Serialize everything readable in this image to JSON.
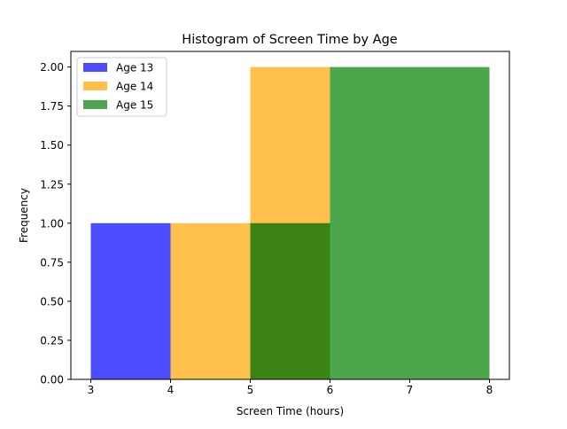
{
  "chart_data": {
    "type": "bar",
    "title": "Histogram of Screen Time by Age",
    "xlabel": "Screen Time (hours)",
    "ylabel": "Frequency",
    "xlim": [
      2.75,
      8.25
    ],
    "ylim": [
      0,
      2.1
    ],
    "xticks": [
      3,
      4,
      5,
      6,
      7,
      8
    ],
    "yticks": [
      0,
      0.25,
      0.5,
      0.75,
      1.0,
      1.25,
      1.5,
      1.75,
      2.0
    ],
    "xtick_labels": [
      "3",
      "4",
      "5",
      "6",
      "7",
      "8"
    ],
    "ytick_labels": [
      "0.00",
      "0.25",
      "0.50",
      "0.75",
      "1.00",
      "1.25",
      "1.50",
      "1.75",
      "2.00"
    ],
    "grid": false,
    "legend_position": "top-left",
    "bin_edges": [
      3,
      4,
      5,
      6,
      7,
      8
    ],
    "series": [
      {
        "name": "Age 13",
        "color": "#0000ff",
        "opacity": 0.7,
        "counts": [
          1,
          0,
          1,
          0,
          0
        ]
      },
      {
        "name": "Age 14",
        "color": "#ffa500",
        "opacity": 0.7,
        "counts": [
          0,
          1,
          2,
          0,
          0
        ]
      },
      {
        "name": "Age 15",
        "color": "#008000",
        "opacity": 0.7,
        "counts": [
          0,
          0,
          1,
          2,
          2
        ]
      }
    ]
  }
}
